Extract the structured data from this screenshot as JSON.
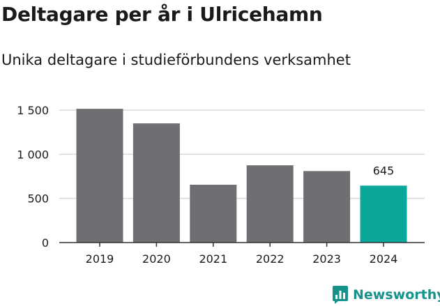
{
  "header": {
    "title": "Deltagare per år i Ulricehamn",
    "subtitle": "Unika deltagare i studieförbundens verksamhet"
  },
  "brand": {
    "name": "Newsworthy",
    "logo_icon": "newsworthy-bar-chart-icon"
  },
  "colors": {
    "bar_default": "#6f6e73",
    "bar_highlight": "#0aa79a",
    "grid": "#d9d9d9",
    "axis": "#333333",
    "text": "#1a1a1a",
    "brand": "#16928a"
  },
  "chart_data": {
    "type": "bar",
    "categories": [
      "2019",
      "2020",
      "2021",
      "2022",
      "2023",
      "2024"
    ],
    "values": [
      1515,
      1350,
      655,
      875,
      810,
      645
    ],
    "highlight_index": 5,
    "data_labels": [
      {
        "index": 5,
        "text": "645"
      }
    ],
    "yticks": [
      0,
      500,
      1000,
      1500
    ],
    "ytick_labels": [
      "0",
      "500",
      "1 000",
      "1 500"
    ],
    "ylim": [
      0,
      1500
    ],
    "grid": true,
    "legend": false,
    "xlabel": "",
    "ylabel": ""
  }
}
